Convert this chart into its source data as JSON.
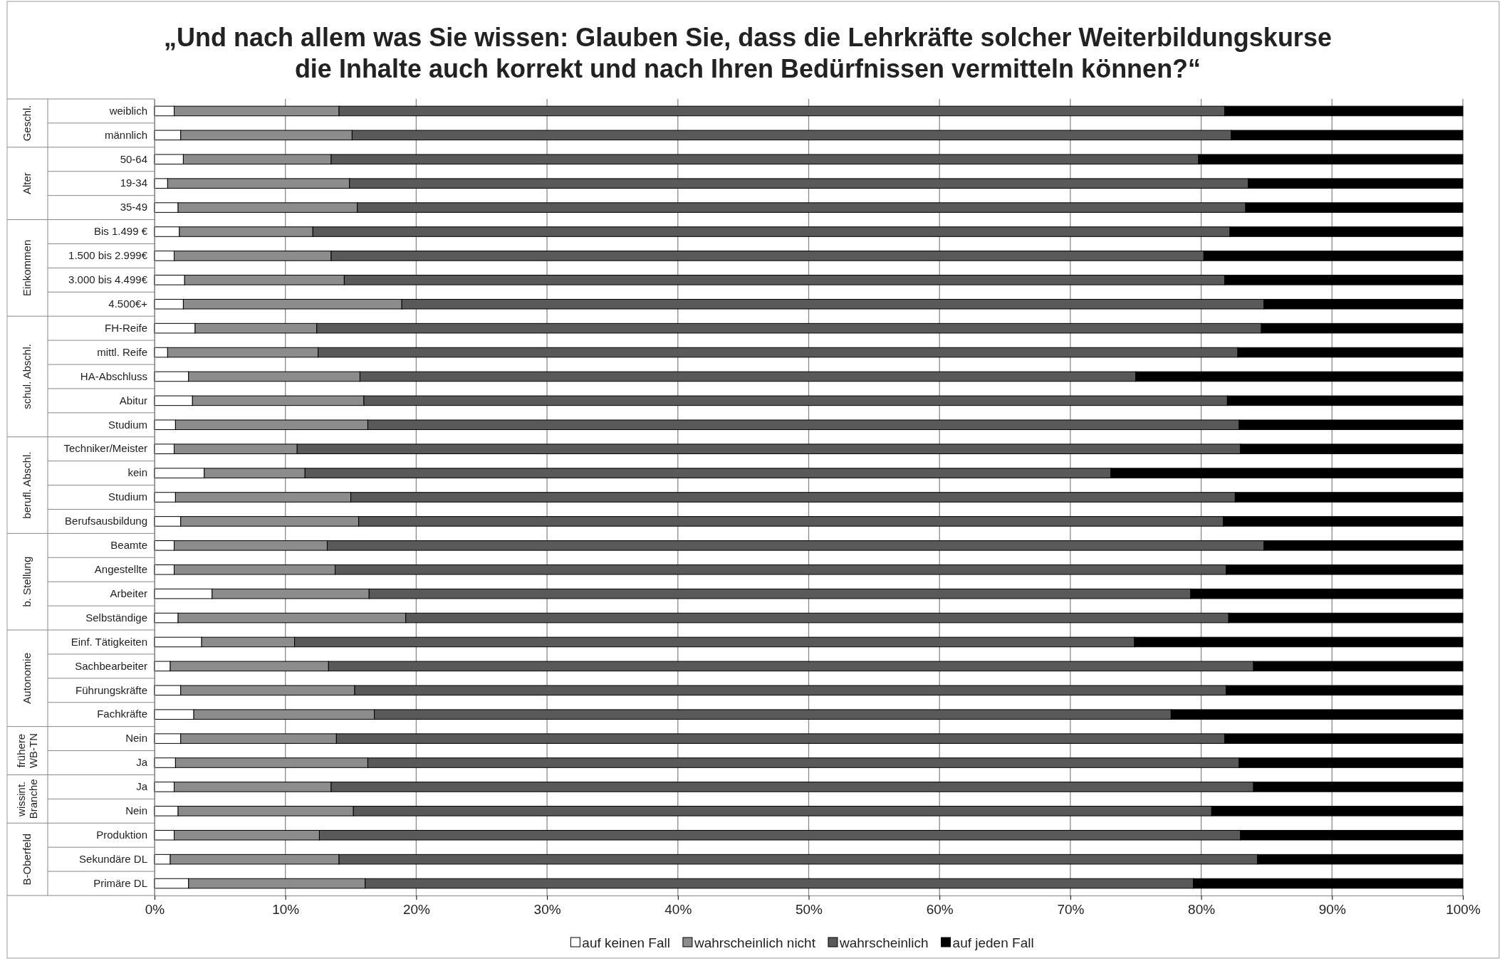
{
  "chart_data": {
    "type": "bar",
    "orientation": "horizontal",
    "stacked": true,
    "title": "„Und nach allem was Sie wissen: Glauben Sie, dass die Lehrkräfte solcher Weiterbildungskurse die Inhalte auch korrekt und nach Ihren Bedürfnissen vermitteln können?“",
    "categories": [
      "weiblich",
      "männlich",
      "50-64",
      "19-34",
      "35-49",
      "Bis 1.499 €",
      "1.500 bis 2.999€",
      "3.000 bis 4.499€",
      "4.500€+",
      "FH-Reife",
      "mittl. Reife",
      "HA-Abschluss",
      "Abitur",
      "Studium",
      "Techniker/Meister",
      "kein",
      "Studium",
      "Berufsausbildung",
      "Beamte",
      "Angestellte",
      "Arbeiter",
      "Selbständige",
      "Einf. Tätigkeiten",
      "Sachbearbeiter",
      "Führungskräfte",
      "Fachkräfte",
      "Nein",
      "Ja",
      "Ja",
      "Nein",
      "Produktion",
      "Sekundäre DL",
      "Primäre DL"
    ],
    "series": [
      {
        "name": "auf keinen Fall",
        "color": "#ffffff",
        "values": [
          1.5,
          2.0,
          2.2,
          1.0,
          1.8,
          1.9,
          1.5,
          2.3,
          2.2,
          3.1,
          1.0,
          2.6,
          2.9,
          1.6,
          1.5,
          3.8,
          1.6,
          2.0,
          1.5,
          1.5,
          4.4,
          1.8,
          3.6,
          1.2,
          2.0,
          3.0,
          2.0,
          1.6,
          1.5,
          1.8,
          1.5,
          1.2,
          2.6
        ]
      },
      {
        "name": "wahrscheinlich nicht",
        "color": "#8c8c8c",
        "values": [
          12.6,
          13.1,
          11.3,
          13.9,
          13.7,
          10.2,
          12.0,
          12.2,
          16.7,
          9.3,
          11.5,
          13.1,
          13.1,
          14.7,
          9.4,
          7.7,
          13.4,
          13.6,
          11.7,
          12.3,
          12.0,
          17.4,
          7.1,
          12.1,
          13.3,
          13.8,
          11.9,
          14.7,
          12.0,
          13.4,
          11.1,
          12.9,
          13.5
        ]
      },
      {
        "name": "wahrscheinlich",
        "color": "#595959",
        "values": [
          67.7,
          67.2,
          66.3,
          68.7,
          67.9,
          70.1,
          66.7,
          67.3,
          65.9,
          72.2,
          70.3,
          59.3,
          66.0,
          66.6,
          72.1,
          61.6,
          67.6,
          66.1,
          71.6,
          68.1,
          62.8,
          62.9,
          64.2,
          70.7,
          66.6,
          60.9,
          67.9,
          66.6,
          70.5,
          65.6,
          70.4,
          70.2,
          63.3
        ]
      },
      {
        "name": "auf jeden Fall",
        "color": "#000000",
        "values": [
          18.2,
          17.7,
          20.2,
          16.4,
          16.6,
          17.8,
          19.8,
          18.2,
          15.2,
          15.4,
          17.2,
          25.0,
          18.0,
          17.1,
          17.0,
          26.9,
          17.4,
          18.3,
          15.2,
          18.1,
          20.8,
          17.9,
          25.1,
          16.0,
          18.1,
          22.3,
          18.2,
          17.1,
          16.0,
          19.2,
          17.0,
          15.7,
          20.6
        ]
      }
    ],
    "xlim": [
      0,
      100
    ],
    "xticks": [
      {
        "value": 0,
        "label": "0%"
      },
      {
        "value": 10,
        "label": "10%"
      },
      {
        "value": 20,
        "label": "20%"
      },
      {
        "value": 30,
        "label": "30%"
      },
      {
        "value": 40,
        "label": "40%"
      },
      {
        "value": 50,
        "label": "50%"
      },
      {
        "value": 60,
        "label": "60%"
      },
      {
        "value": 70,
        "label": "70%"
      },
      {
        "value": 80,
        "label": "80%"
      },
      {
        "value": 90,
        "label": "90%"
      },
      {
        "value": 100,
        "label": "100%"
      }
    ],
    "grid": "x",
    "legend": "bottom",
    "annotations": [
      "Geschl.",
      "Alter",
      "Einkommen",
      "schul. Abschl.",
      "berufl. Abschl.",
      "b. Stellung",
      "Autonomie",
      "frühere WB-TN",
      "wissint. Branche",
      "B-Oberfeld"
    ]
  }
}
